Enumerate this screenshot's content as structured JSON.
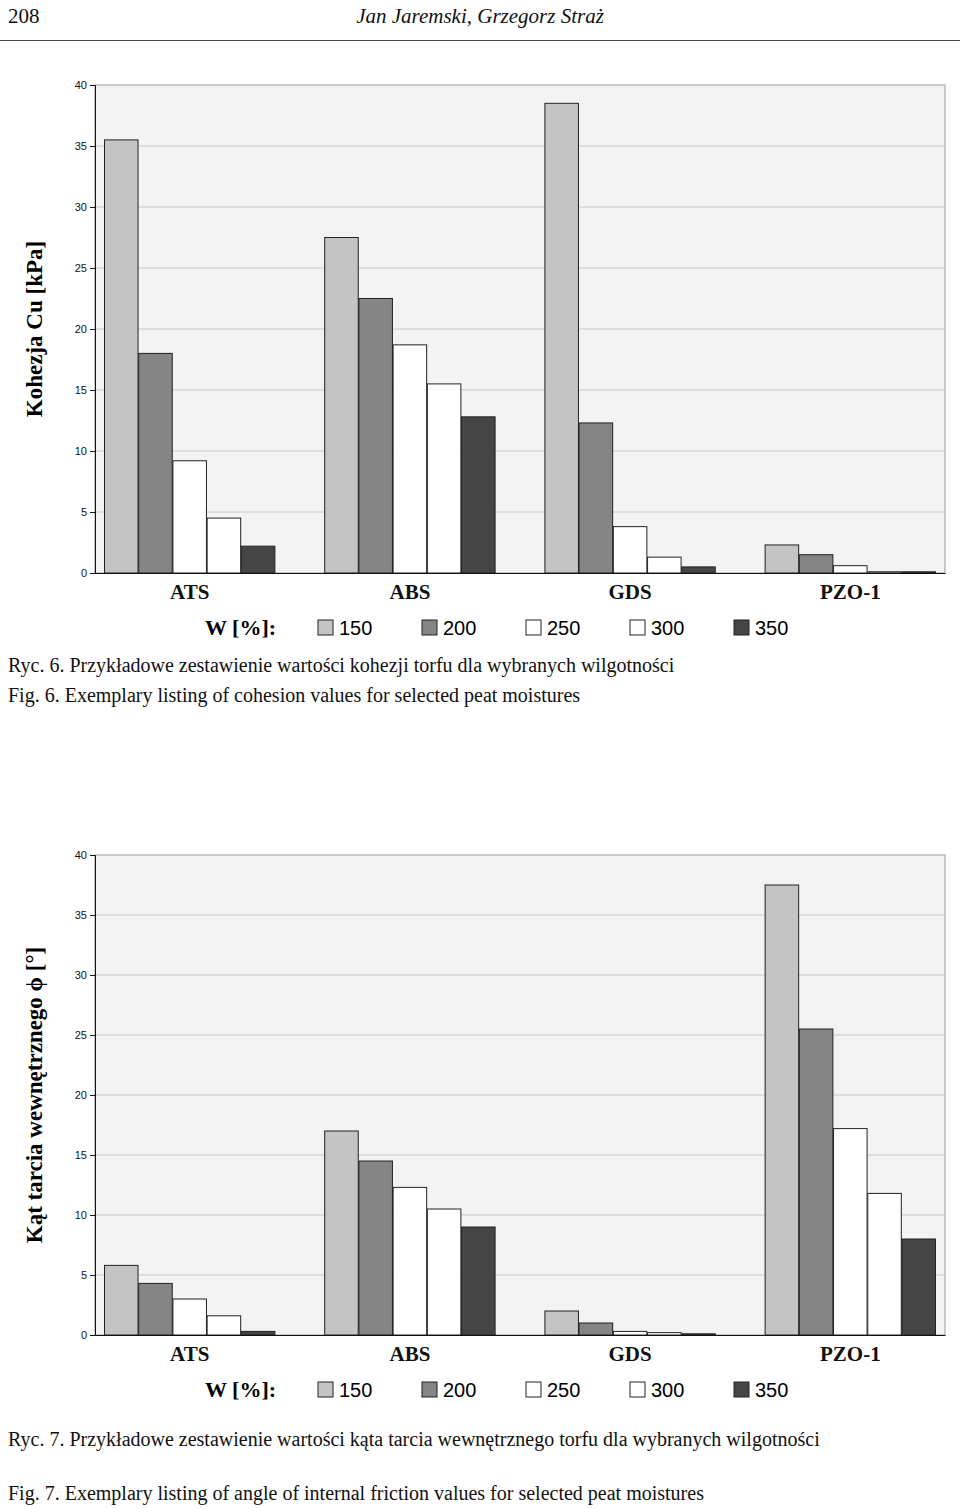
{
  "page_header": {
    "page": "208",
    "authors": "Jan Jaremski, Grzegorz Straż"
  },
  "chart_data": [
    {
      "type": "bar",
      "y_label": "Kohezja Cu [kPa]",
      "categories": [
        "ATS",
        "ABS",
        "GDS",
        "PZO-1"
      ],
      "legend_title": "W [%]:",
      "legend": "bottom",
      "grid": true,
      "ylim": [
        0,
        40
      ],
      "yticks": [
        0,
        5,
        10,
        15,
        20,
        25,
        30,
        35,
        40
      ],
      "series": [
        {
          "name": "150",
          "color": "#c4c4c4",
          "values": [
            35.5,
            27.5,
            38.5,
            2.3
          ]
        },
        {
          "name": "200",
          "color": "#858585",
          "values": [
            18,
            22.5,
            12.3,
            1.5
          ]
        },
        {
          "name": "250",
          "color": "#ffffff",
          "values": [
            9.2,
            18.7,
            3.8,
            0.6
          ]
        },
        {
          "name": "300",
          "color": "#ffffff",
          "values": [
            4.5,
            15.5,
            1.3,
            0.1
          ]
        },
        {
          "name": "350",
          "color": "#454545",
          "values": [
            2.2,
            12.8,
            0.5,
            0.1
          ]
        }
      ],
      "caption": [
        "Ryc. 6. Przykładowe zestawienie wartości kohezji torfu dla wybranych wilgotności",
        "Fig. 6. Exemplary listing of cohesion values for selected peat moistures"
      ]
    },
    {
      "type": "bar",
      "y_label": "Kąt tarcia wewnętrznego ϕ [°]",
      "categories": [
        "ATS",
        "ABS",
        "GDS",
        "PZO-1"
      ],
      "legend_title": "W [%]:",
      "legend": "bottom",
      "grid": true,
      "ylim": [
        0,
        40
      ],
      "yticks": [
        0,
        5,
        10,
        15,
        20,
        25,
        30,
        35,
        40
      ],
      "series": [
        {
          "name": "150",
          "color": "#c4c4c4",
          "values": [
            5.8,
            17,
            2.0,
            37.5
          ]
        },
        {
          "name": "200",
          "color": "#858585",
          "values": [
            4.3,
            14.5,
            1.0,
            25.5
          ]
        },
        {
          "name": "250",
          "color": "#ffffff",
          "values": [
            3.0,
            12.3,
            0.3,
            17.2
          ]
        },
        {
          "name": "300",
          "color": "#ffffff",
          "values": [
            1.6,
            10.5,
            0.2,
            11.8
          ]
        },
        {
          "name": "350",
          "color": "#454545",
          "values": [
            0.3,
            9,
            0.1,
            8.0
          ]
        }
      ],
      "caption": [
        "Ryc. 7. Przykładowe zestawienie wartości kąta tarcia wewnętrznego torfu dla wybranych wilgotności",
        "Fig. 7. Exemplary listing of angle of internal friction values for selected peat moistures"
      ]
    }
  ]
}
